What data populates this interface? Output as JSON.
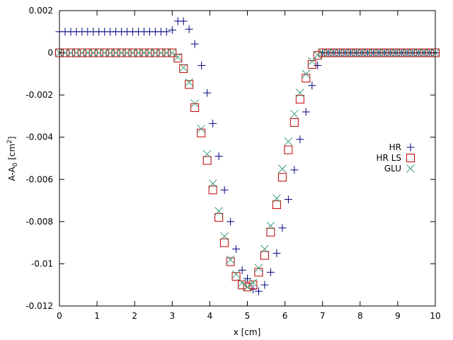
{
  "chart_data": {
    "type": "scatter",
    "xlabel": "x [cm]",
    "ylabel_main": "A-A",
    "ylabel_sub": "0",
    "ylabel_unit_open": " [cm",
    "ylabel_unit_sup": "2",
    "ylabel_unit_close": "]",
    "xlim": [
      0,
      10
    ],
    "ylim": [
      -0.012,
      0.002
    ],
    "x_ticks": [
      0,
      1,
      2,
      3,
      4,
      5,
      6,
      7,
      8,
      9,
      10
    ],
    "x_tick_labels": [
      "0",
      "1",
      "2",
      "3",
      "4",
      "5",
      "6",
      "7",
      "8",
      "9",
      "10"
    ],
    "y_ticks": [
      -0.012,
      -0.01,
      -0.008,
      -0.006,
      -0.004,
      -0.002,
      0,
      0.002
    ],
    "y_tick_labels": [
      "-0.012",
      "-0.01",
      "-0.008",
      "-0.006",
      "-0.004",
      "-0.002",
      "0",
      "0.002"
    ],
    "grid": false,
    "legend_position": "right",
    "series": [
      {
        "name": "HR",
        "marker": "plus",
        "color": "#00007f",
        "points": [
          [
            0,
            0.001
          ],
          [
            0.15,
            0.001
          ],
          [
            0.3,
            0.001
          ],
          [
            0.45,
            0.001
          ],
          [
            0.6,
            0.001
          ],
          [
            0.75,
            0.001
          ],
          [
            0.9,
            0.001
          ],
          [
            1.05,
            0.001
          ],
          [
            1.2,
            0.001
          ],
          [
            1.35,
            0.001
          ],
          [
            1.5,
            0.001
          ],
          [
            1.65,
            0.001
          ],
          [
            1.8,
            0.001
          ],
          [
            1.95,
            0.001
          ],
          [
            2.1,
            0.001
          ],
          [
            2.25,
            0.001
          ],
          [
            2.4,
            0.001
          ],
          [
            2.55,
            0.001
          ],
          [
            2.7,
            0.001
          ],
          [
            2.85,
            0.001
          ],
          [
            3.0,
            0.00108
          ],
          [
            3.15,
            0.0015
          ],
          [
            3.3,
            0.0015
          ],
          [
            3.45,
            0.00112
          ],
          [
            3.6,
            0.00042
          ],
          [
            3.78,
            -0.0006
          ],
          [
            3.93,
            -0.0019
          ],
          [
            4.08,
            -0.00335
          ],
          [
            4.24,
            -0.0049
          ],
          [
            4.39,
            -0.0065
          ],
          [
            4.55,
            -0.008
          ],
          [
            4.7,
            -0.0093
          ],
          [
            4.86,
            -0.0103
          ],
          [
            5.0,
            -0.0107
          ],
          [
            5.15,
            -0.0112
          ],
          [
            5.3,
            -0.0113
          ],
          [
            5.46,
            -0.011
          ],
          [
            5.62,
            -0.0104
          ],
          [
            5.78,
            -0.0095
          ],
          [
            5.93,
            -0.0083
          ],
          [
            6.09,
            -0.00695
          ],
          [
            6.25,
            -0.00555
          ],
          [
            6.4,
            -0.0041
          ],
          [
            6.56,
            -0.0028
          ],
          [
            6.72,
            -0.00155
          ],
          [
            6.87,
            -0.0006
          ],
          [
            7.0,
            0
          ],
          [
            7.15,
            0
          ],
          [
            7.3,
            0
          ],
          [
            7.45,
            0
          ],
          [
            7.6,
            0
          ],
          [
            7.75,
            0
          ],
          [
            7.9,
            0
          ],
          [
            8.05,
            0
          ],
          [
            8.2,
            0
          ],
          [
            8.35,
            0
          ],
          [
            8.5,
            0
          ],
          [
            8.65,
            0
          ],
          [
            8.8,
            0
          ],
          [
            8.95,
            0
          ],
          [
            9.1,
            0
          ],
          [
            9.25,
            0
          ],
          [
            9.4,
            0
          ],
          [
            9.55,
            0
          ],
          [
            9.7,
            0
          ],
          [
            9.85,
            0
          ],
          [
            10,
            0
          ]
        ]
      },
      {
        "name": "HR LS",
        "marker": "square",
        "color": "#c00000",
        "points": [
          [
            0,
            0
          ],
          [
            0.15,
            0
          ],
          [
            0.3,
            0
          ],
          [
            0.45,
            0
          ],
          [
            0.6,
            0
          ],
          [
            0.75,
            0
          ],
          [
            0.9,
            0
          ],
          [
            1.05,
            0
          ],
          [
            1.2,
            0
          ],
          [
            1.35,
            0
          ],
          [
            1.5,
            0
          ],
          [
            1.65,
            0
          ],
          [
            1.8,
            0
          ],
          [
            1.95,
            0
          ],
          [
            2.1,
            0
          ],
          [
            2.25,
            0
          ],
          [
            2.4,
            0
          ],
          [
            2.55,
            0
          ],
          [
            2.7,
            0
          ],
          [
            2.85,
            0
          ],
          [
            3.0,
            0
          ],
          [
            3.15,
            -0.00025
          ],
          [
            3.3,
            -0.00075
          ],
          [
            3.45,
            -0.0015
          ],
          [
            3.6,
            -0.0026
          ],
          [
            3.77,
            -0.0038
          ],
          [
            3.93,
            -0.0051
          ],
          [
            4.08,
            -0.0065
          ],
          [
            4.24,
            -0.0078
          ],
          [
            4.39,
            -0.009
          ],
          [
            4.55,
            -0.0099
          ],
          [
            4.7,
            -0.0106
          ],
          [
            4.86,
            -0.011
          ],
          [
            5.0,
            -0.0111
          ],
          [
            5.15,
            -0.011
          ],
          [
            5.3,
            -0.0104
          ],
          [
            5.46,
            -0.0096
          ],
          [
            5.62,
            -0.0085
          ],
          [
            5.78,
            -0.0072
          ],
          [
            5.93,
            -0.0059
          ],
          [
            6.09,
            -0.0046
          ],
          [
            6.25,
            -0.0033
          ],
          [
            6.4,
            -0.0022
          ],
          [
            6.56,
            -0.0012
          ],
          [
            6.72,
            -0.00055
          ],
          [
            6.87,
            -0.00012
          ],
          [
            7.0,
            0
          ],
          [
            7.15,
            0
          ],
          [
            7.3,
            0
          ],
          [
            7.45,
            0
          ],
          [
            7.6,
            0
          ],
          [
            7.75,
            0
          ],
          [
            7.9,
            0
          ],
          [
            8.05,
            0
          ],
          [
            8.2,
            0
          ],
          [
            8.35,
            0
          ],
          [
            8.5,
            0
          ],
          [
            8.65,
            0
          ],
          [
            8.8,
            0
          ],
          [
            8.95,
            0
          ],
          [
            9.1,
            0
          ],
          [
            9.25,
            0
          ],
          [
            9.4,
            0
          ],
          [
            9.55,
            0
          ],
          [
            9.7,
            0
          ],
          [
            9.85,
            0
          ],
          [
            10,
            0
          ]
        ]
      },
      {
        "name": "GLU",
        "marker": "cross",
        "color": "#3a9a7a",
        "points": [
          [
            0,
            0
          ],
          [
            0.15,
            0
          ],
          [
            0.3,
            0
          ],
          [
            0.45,
            0
          ],
          [
            0.6,
            0
          ],
          [
            0.75,
            0
          ],
          [
            0.9,
            0
          ],
          [
            1.05,
            0
          ],
          [
            1.2,
            0
          ],
          [
            1.35,
            0
          ],
          [
            1.5,
            0
          ],
          [
            1.65,
            0
          ],
          [
            1.8,
            0
          ],
          [
            1.95,
            0
          ],
          [
            2.1,
            0
          ],
          [
            2.25,
            0
          ],
          [
            2.4,
            0
          ],
          [
            2.55,
            0
          ],
          [
            2.7,
            0
          ],
          [
            2.85,
            0
          ],
          [
            3.0,
            0
          ],
          [
            3.15,
            -0.0002
          ],
          [
            3.3,
            -0.0007
          ],
          [
            3.45,
            -0.0014
          ],
          [
            3.6,
            -0.0024
          ],
          [
            3.77,
            -0.0036
          ],
          [
            3.93,
            -0.0048
          ],
          [
            4.08,
            -0.0062
          ],
          [
            4.24,
            -0.0075
          ],
          [
            4.39,
            -0.0087
          ],
          [
            4.55,
            -0.0098
          ],
          [
            4.7,
            -0.0105
          ],
          [
            4.86,
            -0.0109
          ],
          [
            5.0,
            -0.0111
          ],
          [
            5.15,
            -0.0109
          ],
          [
            5.3,
            -0.0102
          ],
          [
            5.46,
            -0.0093
          ],
          [
            5.62,
            -0.0082
          ],
          [
            5.78,
            -0.0069
          ],
          [
            5.93,
            -0.0055
          ],
          [
            6.09,
            -0.0042
          ],
          [
            6.25,
            -0.0029
          ],
          [
            6.4,
            -0.0019
          ],
          [
            6.56,
            -0.001
          ],
          [
            6.72,
            -0.0004
          ],
          [
            6.87,
            -0.0001
          ],
          [
            7.0,
            0
          ],
          [
            7.15,
            0
          ],
          [
            7.3,
            0
          ],
          [
            7.45,
            0
          ],
          [
            7.6,
            0
          ],
          [
            7.75,
            0
          ],
          [
            7.9,
            0
          ],
          [
            8.05,
            0
          ],
          [
            8.2,
            0
          ],
          [
            8.35,
            0
          ],
          [
            8.5,
            0
          ],
          [
            8.65,
            0
          ],
          [
            8.8,
            0
          ],
          [
            8.95,
            0
          ],
          [
            9.1,
            0
          ],
          [
            9.25,
            0
          ],
          [
            9.4,
            0
          ],
          [
            9.55,
            0
          ],
          [
            9.7,
            0
          ],
          [
            9.85,
            0
          ],
          [
            10,
            0
          ]
        ]
      }
    ]
  }
}
